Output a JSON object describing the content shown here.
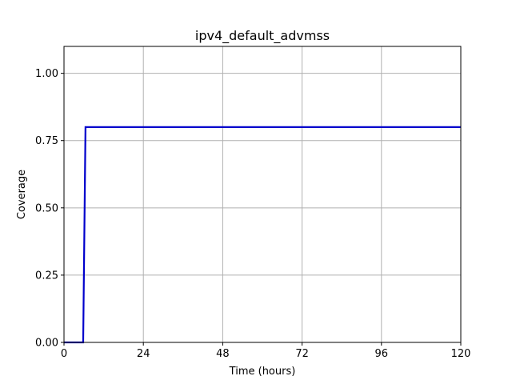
{
  "chart_data": {
    "type": "line",
    "title": "ipv4_default_advmss",
    "xlabel": "Time (hours)",
    "ylabel": "Coverage",
    "xlim": [
      0,
      120
    ],
    "ylim": [
      0,
      1.1
    ],
    "xticks": [
      0,
      24,
      48,
      72,
      96,
      120
    ],
    "xtick_labels": [
      "0",
      "24",
      "48",
      "72",
      "96",
      "120"
    ],
    "yticks": [
      0,
      0.25,
      0.5,
      0.75,
      1.0
    ],
    "ytick_labels": [
      "0.00",
      "0.25",
      "0.50",
      "0.75",
      "1.00"
    ],
    "grid": true,
    "series": [
      {
        "color": "#0000cc",
        "x": [
          0,
          5.8,
          6.5,
          120
        ],
        "y": [
          0,
          0,
          0.8,
          0.8
        ]
      }
    ]
  }
}
